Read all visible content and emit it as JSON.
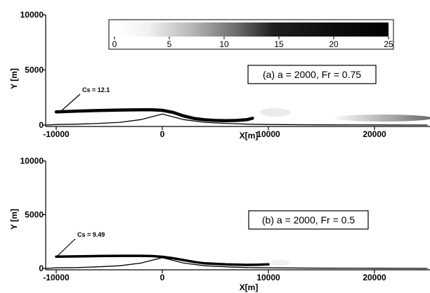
{
  "chart_data": [
    {
      "type": "line",
      "panel_label": "(a) a = 2000, Fr = 0.75",
      "xlabel": "X[m]",
      "ylabel": "Y [m]",
      "xlim": [
        -11000,
        25000
      ],
      "ylim": [
        -500,
        10000
      ],
      "x_ticks": [
        "-10000",
        "0",
        "10000",
        "20000"
      ],
      "y_ticks": [
        "0",
        "5000",
        "10000"
      ],
      "annotation": "Cs = 12.1",
      "series": [
        {
          "role": "terrain",
          "x": [
            -11000,
            -10000,
            -8000,
            -6000,
            -4000,
            -2000,
            -1000,
            0,
            1000,
            2000,
            4000,
            6000,
            8000,
            10000,
            15000,
            20000,
            25000
          ],
          "y": [
            0,
            50,
            80,
            150,
            250,
            500,
            750,
            1000,
            750,
            500,
            250,
            150,
            80,
            50,
            20,
            10,
            0
          ]
        },
        {
          "role": "concentration-plume",
          "x": [
            -10000,
            -8000,
            -6000,
            -4000,
            -2000,
            -1000,
            0,
            1000,
            2000,
            3000,
            4000,
            5000,
            6000,
            7000,
            8000,
            8500
          ],
          "y": [
            1200,
            1270,
            1320,
            1360,
            1390,
            1390,
            1340,
            1150,
            830,
            600,
            480,
            420,
            400,
            420,
            500,
            620
          ]
        }
      ],
      "colorbar": {
        "ticks": [
          "0",
          "5",
          "10",
          "15",
          "20",
          "25"
        ],
        "range": [
          0,
          25
        ],
        "colors": [
          "#ffffff",
          "#000000"
        ]
      }
    },
    {
      "type": "line",
      "panel_label": "(b) a = 2000, Fr = 0.5",
      "xlabel": "X[m]",
      "ylabel": "Y [m]",
      "xlim": [
        -11000,
        25000
      ],
      "ylim": [
        -500,
        10000
      ],
      "x_ticks": [
        "-10000",
        "0",
        "10000",
        "20000"
      ],
      "y_ticks": [
        "0",
        "5000",
        "10000"
      ],
      "annotation": "Cs = 9.49",
      "series": [
        {
          "role": "terrain",
          "x": [
            -11000,
            -10000,
            -8000,
            -6000,
            -4000,
            -2000,
            -1000,
            0,
            1000,
            2000,
            4000,
            6000,
            8000,
            10000,
            15000,
            20000,
            25000
          ],
          "y": [
            0,
            50,
            80,
            150,
            250,
            500,
            750,
            1000,
            750,
            500,
            250,
            150,
            80,
            50,
            20,
            10,
            0
          ]
        },
        {
          "role": "concentration-plume",
          "x": [
            -10000,
            -8000,
            -6000,
            -4000,
            -2000,
            -1000,
            0,
            1000,
            2000,
            3000,
            4000,
            6000,
            8000,
            9000,
            10000
          ],
          "y": [
            1100,
            1120,
            1150,
            1170,
            1170,
            1150,
            1080,
            950,
            780,
            600,
            470,
            370,
            330,
            340,
            380
          ]
        }
      ]
    }
  ],
  "colors": {
    "ink": "#000000",
    "background": "#ffffff"
  }
}
